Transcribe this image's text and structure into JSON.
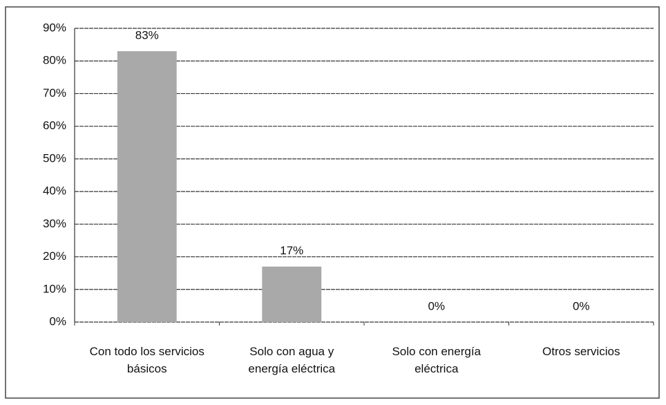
{
  "chart_data": {
    "type": "bar",
    "categories": [
      "Con todo los servicios básicos",
      "Solo con agua y energía eléctrica",
      "Solo con energía eléctrica",
      "Otros servicios"
    ],
    "values": [
      83,
      17,
      0,
      0
    ],
    "value_labels": [
      "83%",
      "17%",
      "0%",
      "0%"
    ],
    "color": "#a9a9a9",
    "ylim": [
      0,
      90
    ],
    "yticks": [
      {
        "value": 0,
        "label": "0%"
      },
      {
        "value": 10,
        "label": "10%"
      },
      {
        "value": 20,
        "label": "20%"
      },
      {
        "value": 30,
        "label": "30%"
      },
      {
        "value": 40,
        "label": "40%"
      },
      {
        "value": 50,
        "label": "50%"
      },
      {
        "value": 60,
        "label": "60%"
      },
      {
        "value": 70,
        "label": "70%"
      },
      {
        "value": 80,
        "label": "80%"
      },
      {
        "value": 90,
        "label": "90%"
      }
    ],
    "grid": true
  }
}
